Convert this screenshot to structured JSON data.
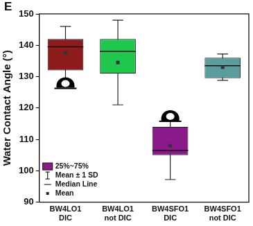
{
  "chart_data": {
    "type": "box",
    "title": "E",
    "y_label": "Water Contact Angle (°)",
    "categories": [
      [
        "BW4LO1",
        "DIC"
      ],
      [
        "BW4LO1",
        "not DIC"
      ],
      [
        "BW4SFO1",
        "DIC"
      ],
      [
        "BW4SFO1",
        "not DIC"
      ]
    ],
    "colors": [
      "#8c1c1c",
      "#1fc74c",
      "#8a1a8a",
      "#5b9c9c"
    ],
    "q1": [
      132,
      131,
      105,
      129.5
    ],
    "q3": [
      142,
      142,
      114,
      136
    ],
    "median": [
      139.5,
      138,
      106.5,
      133.5
    ],
    "mean": [
      137.5,
      134.5,
      108,
      133
    ],
    "sd": [
      8.5,
      13.5,
      10.8,
      4.2
    ],
    "ylim": [
      90,
      150
    ],
    "yticks": [
      90,
      100,
      110,
      120,
      130,
      140,
      150
    ],
    "grid": false,
    "legend": "lower left",
    "legend_entries": [
      "25%~75%",
      "Mean ± 1 SD",
      "Median Line",
      "Mean"
    ]
  }
}
